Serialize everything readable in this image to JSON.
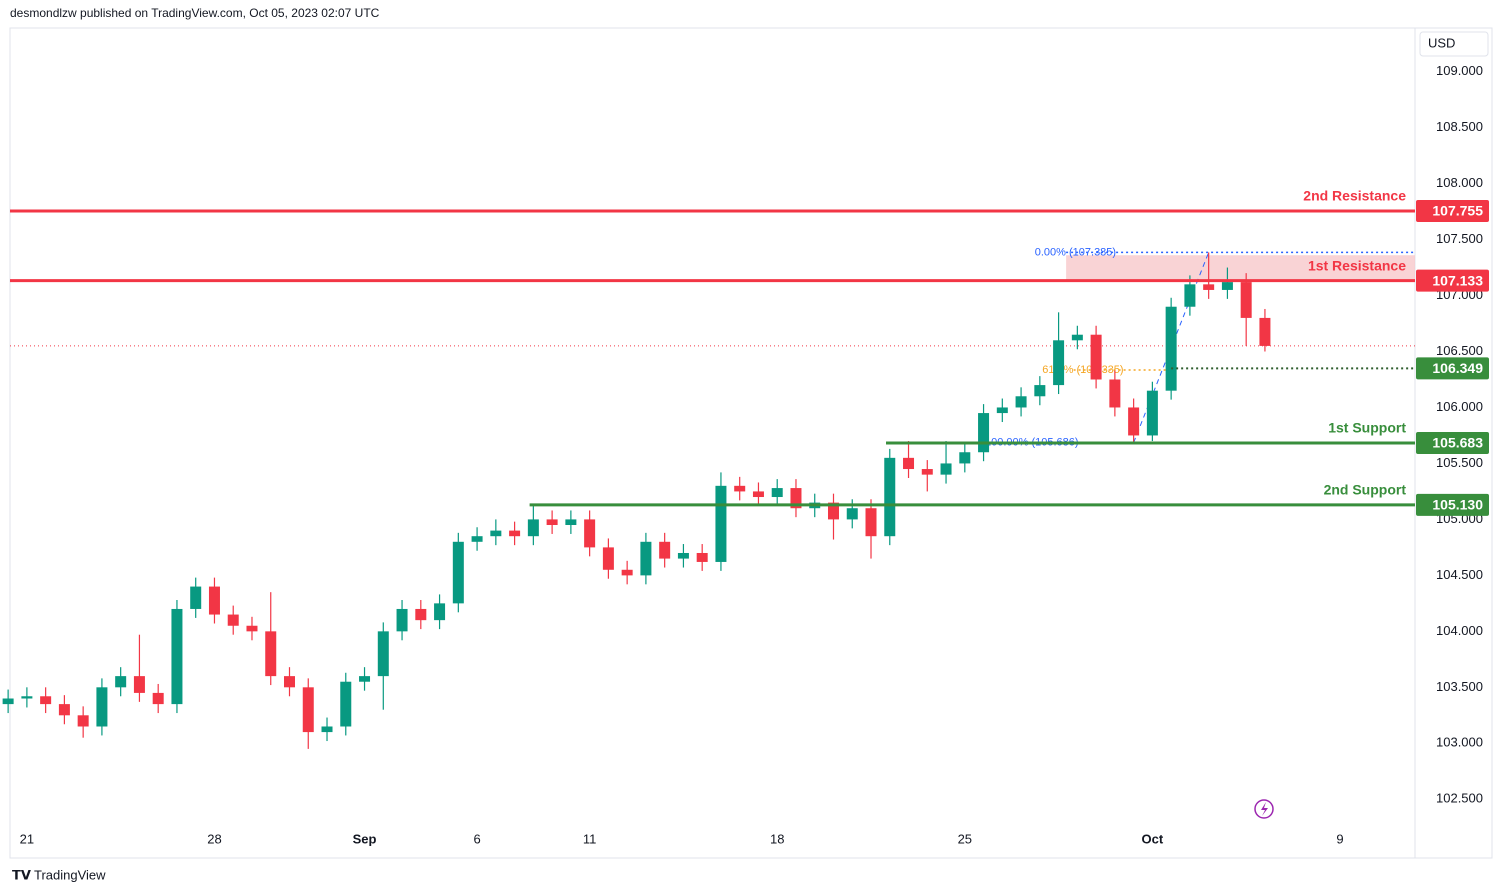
{
  "header": "desmondlzw published on TradingView.com, Oct 05, 2023 02:07 UTC",
  "footer": "TradingView",
  "chart_data": {
    "type": "candlestick",
    "currency": "USD",
    "up_color": "#089981",
    "down_color": "#f23645",
    "xlim": [
      -0.45,
      37.0
    ],
    "ylim": [
      102.27,
      109.39
    ],
    "xticks": [
      {
        "value": 0,
        "label": "21"
      },
      {
        "value": 5,
        "label": "28"
      },
      {
        "value": 9,
        "label": "Sep"
      },
      {
        "value": 12,
        "label": "6"
      },
      {
        "value": 15,
        "label": "11"
      },
      {
        "value": 20,
        "label": "18"
      },
      {
        "value": 25,
        "label": "25"
      },
      {
        "value": 30,
        "label": "Oct"
      },
      {
        "value": 35,
        "label": "9"
      }
    ],
    "yticks": [
      {
        "value": 102.5,
        "label": "102.500"
      },
      {
        "value": 103,
        "label": "103.000"
      },
      {
        "value": 103.5,
        "label": "103.500"
      },
      {
        "value": 104,
        "label": "104.000"
      },
      {
        "value": 104.5,
        "label": "104.500"
      },
      {
        "value": 105,
        "label": "105.000"
      },
      {
        "value": 105.5,
        "label": "105.500"
      },
      {
        "value": 106,
        "label": "106.000"
      },
      {
        "value": 106.5,
        "label": "106.500"
      },
      {
        "value": 107,
        "label": "107.000"
      },
      {
        "value": 107.5,
        "label": "107.500"
      },
      {
        "value": 108,
        "label": "108.000"
      },
      {
        "value": 108.5,
        "label": "108.500"
      },
      {
        "value": 109,
        "label": "109.000"
      }
    ],
    "x": [
      -0.5,
      0,
      0.5,
      1,
      1.5,
      2,
      2.5,
      3,
      3.5,
      4,
      4.5,
      5,
      5.5,
      6,
      6.5,
      7,
      7.5,
      8,
      8.5,
      9,
      9.5,
      10,
      10.5,
      11,
      11.5,
      12,
      12.5,
      13,
      13.5,
      14,
      14.5,
      15,
      15.5,
      16,
      16.5,
      17,
      17.5,
      18,
      18.5,
      19,
      19.5,
      20,
      20.5,
      21,
      21.5,
      22,
      22.5,
      23,
      23.5,
      24,
      24.5,
      25,
      25.5,
      26,
      26.5,
      27,
      27.5,
      28,
      28.5,
      29,
      29.5,
      30,
      30.5,
      31,
      31.5,
      32,
      32.5,
      33
    ],
    "open": [
      103.35,
      103.4,
      103.42,
      103.35,
      103.25,
      103.15,
      103.5,
      103.6,
      103.45,
      103.35,
      104.2,
      104.4,
      104.15,
      104.05,
      104.0,
      103.6,
      103.5,
      103.1,
      103.15,
      103.55,
      103.6,
      104.0,
      104.2,
      104.1,
      104.25,
      104.8,
      104.85,
      104.9,
      104.85,
      105.0,
      104.95,
      105.0,
      104.75,
      104.55,
      104.5,
      104.8,
      104.65,
      104.7,
      104.62,
      105.3,
      105.25,
      105.2,
      105.28,
      105.1,
      105.15,
      105.0,
      105.1,
      104.85,
      105.55,
      105.45,
      105.4,
      105.5,
      105.6,
      105.95,
      106.0,
      106.1,
      106.2,
      106.6,
      106.65,
      106.25,
      106.0,
      105.75,
      106.15,
      106.9,
      107.1,
      107.05,
      107.12,
      106.8
    ],
    "high": [
      103.48,
      103.5,
      103.5,
      103.43,
      103.33,
      103.58,
      103.68,
      103.97,
      103.53,
      104.28,
      104.48,
      104.48,
      104.23,
      104.13,
      104.35,
      103.68,
      103.58,
      103.23,
      103.63,
      103.68,
      104.08,
      104.28,
      104.28,
      104.33,
      104.88,
      104.93,
      105.0,
      104.98,
      105.12,
      105.08,
      105.08,
      105.08,
      104.83,
      104.63,
      104.88,
      104.88,
      104.78,
      104.78,
      105.42,
      105.38,
      105.33,
      105.36,
      105.36,
      105.23,
      105.23,
      105.18,
      105.18,
      105.63,
      105.7,
      105.53,
      105.7,
      105.68,
      106.03,
      106.08,
      106.18,
      106.28,
      106.85,
      106.73,
      106.73,
      106.33,
      106.08,
      106.23,
      106.98,
      107.18,
      107.385,
      107.25,
      107.2,
      106.88
    ],
    "low": [
      103.27,
      103.32,
      103.27,
      103.17,
      103.05,
      103.07,
      103.42,
      103.37,
      103.27,
      103.27,
      104.12,
      104.07,
      103.97,
      103.92,
      103.52,
      103.42,
      102.95,
      103.02,
      103.07,
      103.47,
      103.3,
      103.92,
      104.02,
      104.02,
      104.17,
      104.72,
      104.77,
      104.77,
      104.77,
      104.87,
      104.87,
      104.67,
      104.47,
      104.42,
      104.42,
      104.57,
      104.57,
      104.54,
      104.54,
      105.17,
      105.12,
      105.12,
      105.02,
      105.02,
      104.82,
      104.92,
      104.65,
      104.77,
      105.37,
      105.25,
      105.32,
      105.42,
      105.52,
      105.87,
      105.92,
      106.02,
      106.12,
      106.52,
      106.17,
      105.92,
      105.686,
      105.7,
      106.07,
      106.82,
      106.97,
      106.97,
      106.55,
      106.5
    ],
    "close": [
      103.4,
      103.42,
      103.35,
      103.25,
      103.15,
      103.5,
      103.6,
      103.45,
      103.35,
      104.2,
      104.4,
      104.15,
      104.05,
      104.0,
      103.6,
      103.5,
      103.1,
      103.15,
      103.55,
      103.6,
      104.0,
      104.2,
      104.1,
      104.25,
      104.8,
      104.85,
      104.9,
      104.85,
      105.0,
      104.95,
      105.0,
      104.75,
      104.55,
      104.5,
      104.8,
      104.65,
      104.7,
      104.62,
      105.3,
      105.25,
      105.2,
      105.28,
      105.1,
      105.15,
      105.0,
      105.1,
      104.85,
      105.55,
      105.45,
      105.4,
      105.5,
      105.6,
      105.95,
      106.0,
      106.1,
      106.2,
      106.6,
      106.65,
      106.25,
      106.0,
      105.75,
      106.15,
      106.9,
      107.1,
      107.05,
      107.12,
      106.8,
      106.55
    ],
    "zone": {
      "from": 107.133,
      "to": 107.36,
      "start_x": 27.7,
      "color": "#f7c8cb"
    },
    "levels": [
      {
        "name": "2nd Resistance",
        "value": 107.755,
        "value_label": "107.755",
        "color": "#f23645"
      },
      {
        "name": "1st Resistance",
        "value": 107.133,
        "value_label": "107.133",
        "color": "#f23645"
      },
      {
        "value": 106.349,
        "value_label": "106.349",
        "color": "#388e3c",
        "start_x": 30.5,
        "dotted": true
      },
      {
        "name": "1st Support",
        "value": 105.683,
        "value_label": "105.683",
        "color": "#388e3c",
        "start_x": 22.9
      },
      {
        "name": "2nd Support",
        "value": 105.13,
        "value_label": "105.130",
        "color": "#388e3c",
        "start_x": 13.4
      }
    ],
    "fib": [
      {
        "label": "0.00% (107.385)",
        "value": 107.385,
        "start_x": 27.7,
        "end_x": 37.0,
        "color": "#2962ff"
      },
      {
        "label": "61.8% (106.335)",
        "value": 106.335,
        "start_x": 27.9,
        "end_x": 30.4,
        "color": "#f5a623"
      },
      {
        "label": "100.00% (105.686)",
        "value": 105.686,
        "start_x": 26.7,
        "end_x": 30.0,
        "color": "#2962ff"
      }
    ]
  }
}
